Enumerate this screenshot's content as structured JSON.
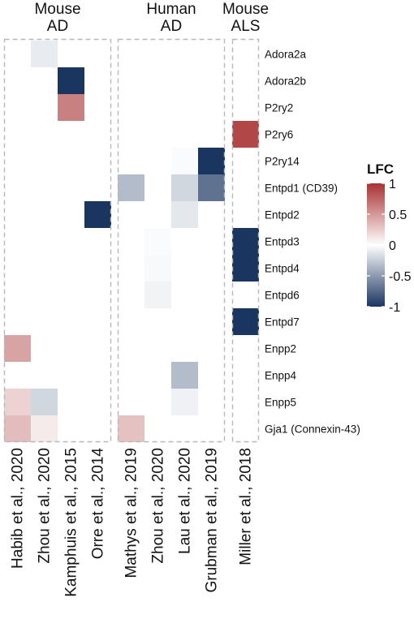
{
  "chart_data": {
    "type": "heatmap",
    "groups": [
      {
        "label_lines": [
          "Mouse",
          "AD"
        ],
        "columns": [
          0,
          1,
          2,
          3
        ]
      },
      {
        "label_lines": [
          "Human",
          "AD"
        ],
        "columns": [
          4,
          5,
          6,
          7
        ]
      },
      {
        "label_lines": [
          "Mouse",
          "ALS"
        ],
        "columns": [
          8
        ]
      }
    ],
    "columns": [
      "Habib et al., 2020",
      "Zhou et al., 2020",
      "Kamphuis et al., 2015",
      "Orre et al., 2014",
      "Mathys et al., 2019",
      "Zhou et al., 2020",
      "Lau et al., 2020",
      "Grubman et al., 2019",
      "Miller et al., 2018"
    ],
    "rows": [
      "Adora2a",
      "Adora2b",
      "P2ry2",
      "P2ry6",
      "P2ry14",
      "Entpd1 (CD39)",
      "Entpd2",
      "Entpd3",
      "Entpd4",
      "Entpd6",
      "Entpd7",
      "Enpp2",
      "Enpp4",
      "Enpp5",
      "Gja1 (Connexin-43)"
    ],
    "cells": [
      {
        "row": 0,
        "col": 1,
        "value": -0.1
      },
      {
        "row": 1,
        "col": 2,
        "value": -1
      },
      {
        "row": 2,
        "col": 2,
        "value": 0.62
      },
      {
        "row": 3,
        "col": 8,
        "value": 0.9
      },
      {
        "row": 4,
        "col": 6,
        "value": -0.02
      },
      {
        "row": 4,
        "col": 7,
        "value": -1
      },
      {
        "row": 5,
        "col": 4,
        "value": -0.33
      },
      {
        "row": 5,
        "col": 6,
        "value": -0.2
      },
      {
        "row": 5,
        "col": 7,
        "value": -0.7
      },
      {
        "row": 6,
        "col": 3,
        "value": -1
      },
      {
        "row": 6,
        "col": 6,
        "value": -0.12
      },
      {
        "row": 7,
        "col": 5,
        "value": -0.02
      },
      {
        "row": 7,
        "col": 8,
        "value": -1
      },
      {
        "row": 8,
        "col": 5,
        "value": -0.03
      },
      {
        "row": 8,
        "col": 8,
        "value": -1
      },
      {
        "row": 9,
        "col": 5,
        "value": -0.06
      },
      {
        "row": 10,
        "col": 8,
        "value": -1
      },
      {
        "row": 11,
        "col": 0,
        "value": 0.45
      },
      {
        "row": 12,
        "col": 6,
        "value": -0.33
      },
      {
        "row": 13,
        "col": 0,
        "value": 0.22
      },
      {
        "row": 13,
        "col": 1,
        "value": -0.2
      },
      {
        "row": 13,
        "col": 6,
        "value": -0.07
      },
      {
        "row": 14,
        "col": 0,
        "value": 0.32
      },
      {
        "row": 14,
        "col": 1,
        "value": 0.1
      },
      {
        "row": 14,
        "col": 4,
        "value": 0.3
      }
    ],
    "legend": {
      "title": "LFC",
      "placement": "right",
      "range": [
        -1,
        1
      ],
      "ticks": [
        1,
        0.5,
        0,
        -0.5,
        -1
      ],
      "tick_labels": [
        "1",
        "0.5",
        "0",
        "-0.5",
        "-1"
      ]
    },
    "colors": {
      "low": "#1a3560",
      "mid": "#ffffff",
      "high": "#a83232"
    }
  }
}
